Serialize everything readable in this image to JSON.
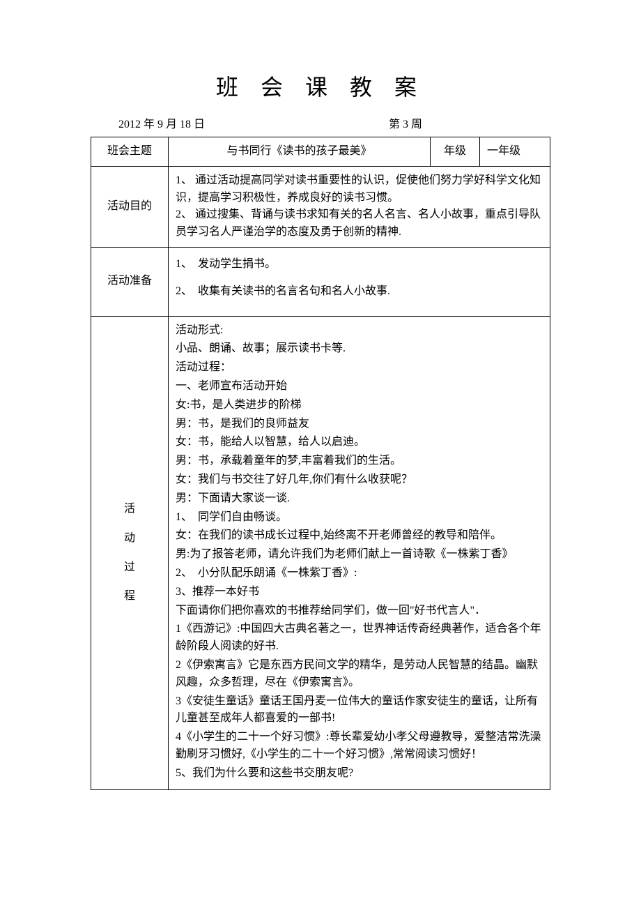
{
  "title": "班 会 课 教 案",
  "meta": {
    "date": "2012 年 9 月 18 日",
    "week": "第 3 周"
  },
  "labels": {
    "theme": "班会主题",
    "grade": "年级",
    "purpose": "活动目的",
    "prep": "活动准备"
  },
  "theme": "与书同行《读书的孩子最美》",
  "grade": "一年级",
  "purpose": {
    "l1": "1、 通过活动提高同学对读书重要性的认识，促使他们努力学好科学文化知识，提高学习积极性，养成良好的读书习惯。",
    "l2": "2、 通过搜集、背诵与读书求知有关的名人名言、名人小故事，重点引导队员学习名人严谨治学的态度及勇于创新的精神."
  },
  "prep": {
    "l1": "1、　发动学生捐书。",
    "l2": "2、　收集有关读书的名言名句和名人小故事."
  },
  "process_label": {
    "c1": "活",
    "c2": "动",
    "c3": "过",
    "c4": "程"
  },
  "process": {
    "p0": "活动形式:",
    "p1": "小品、朗诵、故事；展示读书卡等.",
    "p2": "活动过程：",
    "p3": "一、老师宣布活动开始",
    "p4": "女:书，是人类进步的阶梯",
    "p5": "男：书，是我们的良师益友",
    "p6": "女：书，能给人以智慧，给人以启迪。",
    "p7": "男：书，承载着童年的梦,丰富着我们的生活。",
    "p8": "女：我们与书交往了好几年,你们有什么收获呢？",
    "p9": "男：下面请大家谈一谈.",
    "p10": "1、　同学们自由畅谈。",
    "p11": "女：在我们的读书成长过程中,始终离不开老师曾经的教导和陪伴。",
    "p12": "男:为了报答老师，请允许我们为老师们献上一首诗歌《一株紫丁香》",
    "p13": "2、　小分队配乐朗诵《一株紫丁香》:",
    "p14": "3、推荐一本好书",
    "p15": "下面请你们把你喜欢的书推荐给同学们，做一回\"好书代言人\"．",
    "p16": "1《西游记》:中国四大古典名著之一，世界神话传奇经典著作，适合各个年龄阶段人阅读的好书.",
    "p17": "2《伊索寓言》它是东西方民间文学的精华，是劳动人民智慧的结晶。幽默风趣，众多哲理，尽在《伊索寓言》。",
    "p18": "3《安徒生童话》童话王国丹麦一位伟大的童话作家安徒生的童话，让所有儿童甚至成年人都喜爱的一部书!",
    "p19": "4《小学生的二十一个好习惯》:尊长辈爱幼小孝父母遵教导，爱整洁常洗澡勤刷牙习惯好,《小学生的二十一个好习惯》,常常阅读习惯好！",
    "p20": "5、我们为什么要和这些书交朋友呢?"
  }
}
